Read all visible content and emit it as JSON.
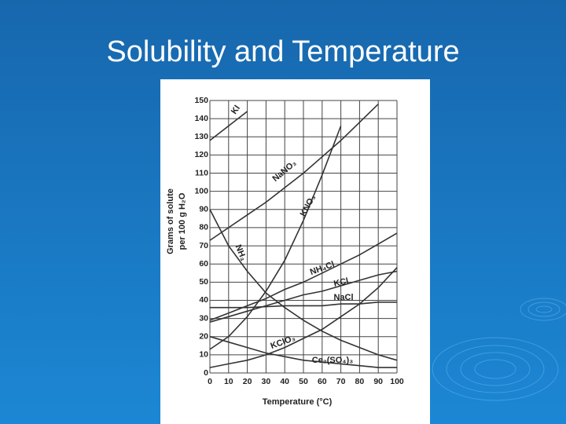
{
  "chart_data": {
    "type": "line",
    "title": "Solubility and Temperature",
    "xlabel": "Temperature (°C)",
    "ylabel": [
      "Grams of solute",
      "per 100 g H₂O"
    ],
    "x": [
      0,
      10,
      20,
      30,
      40,
      50,
      60,
      70,
      80,
      90,
      100
    ],
    "xlim": [
      0,
      100
    ],
    "xticks": [
      0,
      10,
      20,
      30,
      40,
      50,
      60,
      70,
      80,
      90,
      100
    ],
    "ylim": [
      0,
      150
    ],
    "yticks": [
      0,
      10,
      20,
      30,
      40,
      50,
      60,
      70,
      80,
      90,
      100,
      110,
      120,
      130,
      140,
      150
    ],
    "grid": true,
    "series": [
      {
        "name": "KI",
        "color": "#333333",
        "values": [
          128,
          136,
          144,
          null,
          null,
          null,
          null,
          null,
          null,
          null,
          null
        ]
      },
      {
        "name": "NaNO₃",
        "color": "#333333",
        "values": [
          73,
          80,
          87,
          94,
          102,
          110,
          119,
          128,
          138,
          148,
          null
        ]
      },
      {
        "name": "KNO₃",
        "color": "#333333",
        "values": [
          13,
          20,
          31,
          45,
          62,
          84,
          109,
          136,
          null,
          null,
          null
        ]
      },
      {
        "name": "NH₃",
        "color": "#333333",
        "values": [
          90,
          70,
          56,
          44,
          36,
          29,
          23,
          18,
          14,
          10,
          7
        ]
      },
      {
        "name": "NH₄Cl",
        "color": "#333333",
        "values": [
          29,
          33,
          37,
          41,
          46,
          50,
          55,
          60,
          65,
          71,
          77
        ]
      },
      {
        "name": "KCl",
        "color": "#333333",
        "values": [
          28,
          31,
          34,
          37,
          40,
          43,
          45,
          48,
          51,
          54,
          56
        ]
      },
      {
        "name": "NaCl",
        "color": "#333333",
        "values": [
          36,
          36,
          36,
          36.5,
          37,
          37,
          37,
          38,
          38,
          39,
          39
        ]
      },
      {
        "name": "KClO₃",
        "color": "#333333",
        "values": [
          3,
          5,
          7,
          10,
          14,
          19,
          24,
          31,
          38,
          47,
          58
        ]
      },
      {
        "name": "Ce₂(SO₄)₃",
        "color": "#333333",
        "values": [
          20,
          17,
          14,
          11,
          9,
          7,
          6,
          5,
          4,
          3,
          3
        ]
      }
    ]
  }
}
